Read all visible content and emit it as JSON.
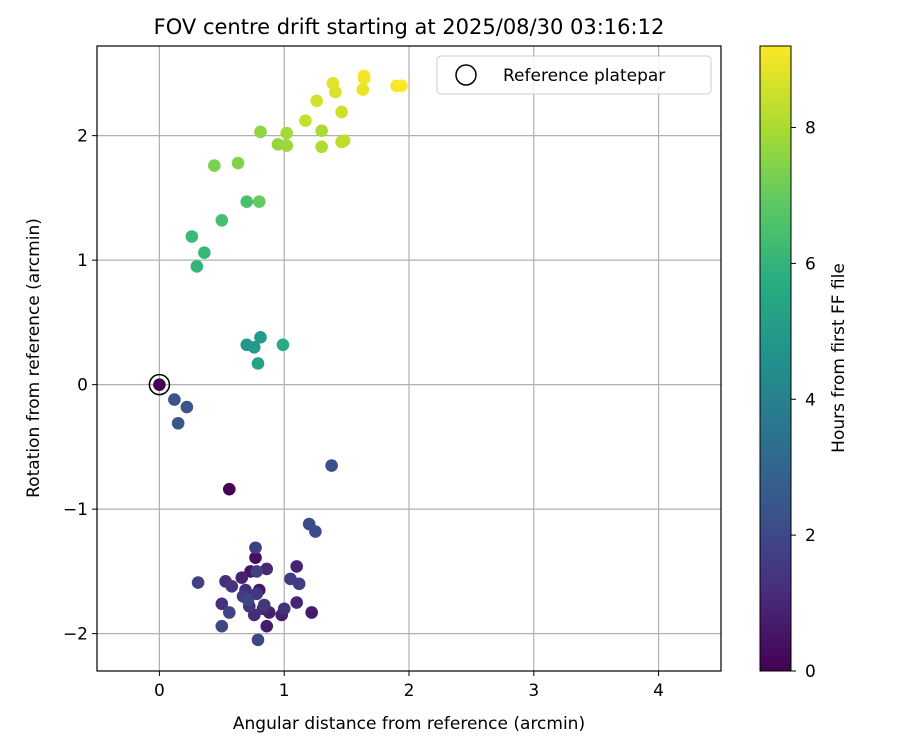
{
  "chart_data": {
    "type": "scatter",
    "title": "FOV centre drift starting at 2025/08/30 03:16:12",
    "xlabel": "Angular distance from reference (arcmin)",
    "ylabel": "Rotation from reference (arcmin)",
    "xlim": [
      -0.5,
      4.5
    ],
    "ylim": [
      -2.3,
      2.72
    ],
    "xticks": [
      0,
      1,
      2,
      3,
      4
    ],
    "yticks": [
      -2,
      -1,
      0,
      1,
      2
    ],
    "xtick_labels": [
      "0",
      "1",
      "2",
      "3",
      "4"
    ],
    "ytick_labels": [
      "−2",
      "−1",
      "0",
      "1",
      "2"
    ],
    "grid": true,
    "legend": {
      "location": "upper right",
      "label": "Reference platepar"
    },
    "reference_point": {
      "x": 0,
      "y": 0
    },
    "colorbar": {
      "label": "Hours from first FF file",
      "range": [
        0,
        9.2
      ],
      "ticks": [
        0,
        2,
        4,
        6,
        8
      ],
      "tick_labels": [
        "0",
        "2",
        "4",
        "6",
        "8"
      ],
      "colormap": "viridis"
    },
    "points": [
      {
        "x": 0.0,
        "y": 0.0,
        "t": 0.0
      },
      {
        "x": 0.56,
        "y": -0.84,
        "t": 0.05
      },
      {
        "x": 0.86,
        "y": -1.94,
        "t": 0.7
      },
      {
        "x": 1.22,
        "y": -1.83,
        "t": 0.65
      },
      {
        "x": 0.77,
        "y": -1.39,
        "t": 0.4
      },
      {
        "x": 0.73,
        "y": -1.5,
        "t": 0.5
      },
      {
        "x": 0.8,
        "y": -1.65,
        "t": 0.55
      },
      {
        "x": 0.98,
        "y": -1.85,
        "t": 0.75
      },
      {
        "x": 0.88,
        "y": -1.83,
        "t": 0.8
      },
      {
        "x": 0.66,
        "y": -1.55,
        "t": 0.85
      },
      {
        "x": 1.1,
        "y": -1.46,
        "t": 0.9
      },
      {
        "x": 1.1,
        "y": -1.75,
        "t": 0.95
      },
      {
        "x": 0.83,
        "y": -1.8,
        "t": 1.0
      },
      {
        "x": 0.86,
        "y": -1.48,
        "t": 1.05
      },
      {
        "x": 0.76,
        "y": -1.85,
        "t": 1.1
      },
      {
        "x": 0.69,
        "y": -1.65,
        "t": 1.15
      },
      {
        "x": 0.5,
        "y": -1.76,
        "t": 1.2
      },
      {
        "x": 0.53,
        "y": -1.58,
        "t": 1.25
      },
      {
        "x": 1.0,
        "y": -1.8,
        "t": 1.3
      },
      {
        "x": 0.72,
        "y": -1.78,
        "t": 1.35
      },
      {
        "x": 0.58,
        "y": -1.62,
        "t": 1.4
      },
      {
        "x": 0.84,
        "y": -1.77,
        "t": 1.45
      },
      {
        "x": 0.78,
        "y": -1.68,
        "t": 1.5
      },
      {
        "x": 0.67,
        "y": -1.7,
        "t": 1.55
      },
      {
        "x": 1.05,
        "y": -1.56,
        "t": 1.6
      },
      {
        "x": 1.12,
        "y": -1.6,
        "t": 1.65
      },
      {
        "x": 0.77,
        "y": -1.31,
        "t": 1.7
      },
      {
        "x": 0.78,
        "y": -1.5,
        "t": 1.75
      },
      {
        "x": 0.31,
        "y": -1.59,
        "t": 1.8
      },
      {
        "x": 0.56,
        "y": -1.83,
        "t": 1.85
      },
      {
        "x": 0.71,
        "y": -1.73,
        "t": 1.9
      },
      {
        "x": 0.5,
        "y": -1.94,
        "t": 1.95
      },
      {
        "x": 0.79,
        "y": -2.05,
        "t": 2.0
      },
      {
        "x": 1.2,
        "y": -1.12,
        "t": 2.1
      },
      {
        "x": 1.25,
        "y": -1.18,
        "t": 2.15
      },
      {
        "x": 1.38,
        "y": -0.65,
        "t": 2.2
      },
      {
        "x": 0.12,
        "y": -0.12,
        "t": 2.3
      },
      {
        "x": 0.22,
        "y": -0.18,
        "t": 2.4
      },
      {
        "x": 0.15,
        "y": -0.31,
        "t": 2.5
      },
      {
        "x": 0.7,
        "y": 0.32,
        "t": 4.8
      },
      {
        "x": 0.76,
        "y": 0.3,
        "t": 4.9
      },
      {
        "x": 0.81,
        "y": 0.38,
        "t": 5.0
      },
      {
        "x": 0.79,
        "y": 0.17,
        "t": 5.3
      },
      {
        "x": 0.99,
        "y": 0.32,
        "t": 5.6
      },
      {
        "x": 0.3,
        "y": 0.95,
        "t": 6.0
      },
      {
        "x": 0.36,
        "y": 1.06,
        "t": 6.1
      },
      {
        "x": 0.26,
        "y": 1.19,
        "t": 6.2
      },
      {
        "x": 0.5,
        "y": 1.32,
        "t": 6.4
      },
      {
        "x": 0.7,
        "y": 1.47,
        "t": 6.5
      },
      {
        "x": 0.8,
        "y": 1.47,
        "t": 7.0
      },
      {
        "x": 0.44,
        "y": 1.76,
        "t": 7.3
      },
      {
        "x": 0.63,
        "y": 1.78,
        "t": 7.4
      },
      {
        "x": 0.81,
        "y": 2.03,
        "t": 7.6
      },
      {
        "x": 0.95,
        "y": 1.93,
        "t": 7.7
      },
      {
        "x": 1.02,
        "y": 1.92,
        "t": 7.8
      },
      {
        "x": 1.02,
        "y": 2.02,
        "t": 7.9
      },
      {
        "x": 1.3,
        "y": 2.04,
        "t": 8.0
      },
      {
        "x": 1.3,
        "y": 1.91,
        "t": 8.1
      },
      {
        "x": 1.46,
        "y": 1.95,
        "t": 8.2
      },
      {
        "x": 1.48,
        "y": 1.96,
        "t": 8.3
      },
      {
        "x": 1.17,
        "y": 2.12,
        "t": 8.4
      },
      {
        "x": 1.46,
        "y": 2.19,
        "t": 8.5
      },
      {
        "x": 1.26,
        "y": 2.28,
        "t": 8.6
      },
      {
        "x": 1.41,
        "y": 2.35,
        "t": 8.7
      },
      {
        "x": 1.39,
        "y": 2.42,
        "t": 8.8
      },
      {
        "x": 1.63,
        "y": 2.37,
        "t": 8.9
      },
      {
        "x": 1.64,
        "y": 2.46,
        "t": 9.0
      },
      {
        "x": 1.64,
        "y": 2.48,
        "t": 9.05
      },
      {
        "x": 1.9,
        "y": 2.4,
        "t": 9.1
      },
      {
        "x": 1.94,
        "y": 2.4,
        "t": 9.15
      }
    ]
  }
}
